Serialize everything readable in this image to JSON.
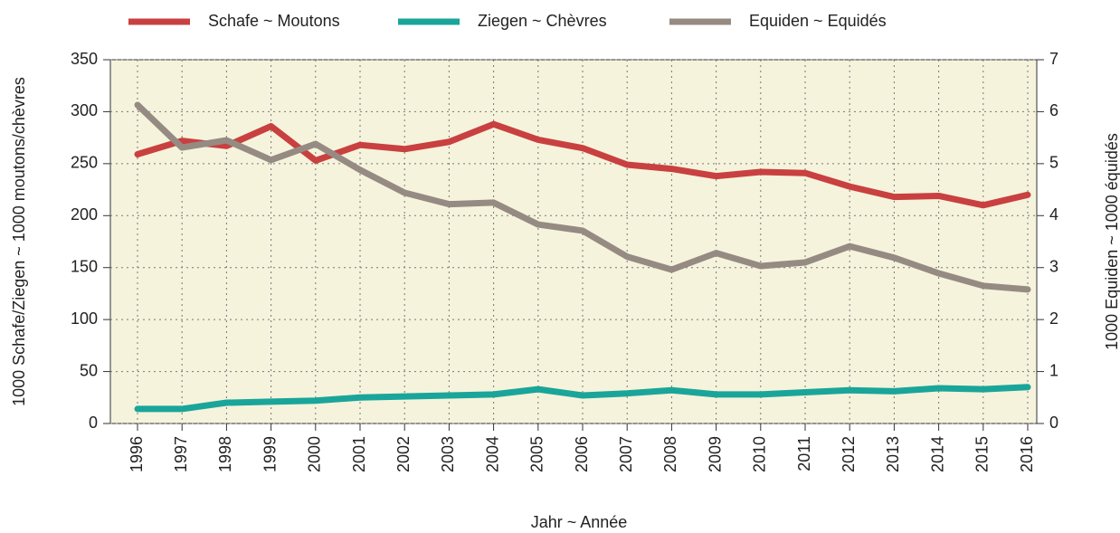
{
  "chart_data": {
    "type": "line",
    "categories": [
      "1996",
      "1997",
      "1998",
      "1999",
      "2000",
      "2001",
      "2002",
      "2003",
      "2004",
      "2005",
      "2006",
      "2007",
      "2008",
      "2009",
      "2010",
      "2011",
      "2012",
      "2013",
      "2014",
      "2015",
      "2016"
    ],
    "series": [
      {
        "name": "Schafe ~ Moutons",
        "color": "#c94040",
        "values": [
          259,
          272,
          267,
          286,
          253,
          268,
          264,
          271,
          288,
          273,
          265,
          249,
          245,
          238,
          242,
          241,
          228,
          218,
          219,
          210,
          220
        ]
      },
      {
        "name": "Ziegen ~ Chèvres",
        "color": "#1aa59a",
        "values": [
          14,
          14,
          20,
          21,
          22,
          25,
          26,
          27,
          28,
          33,
          27,
          29,
          32,
          28,
          28,
          30,
          32,
          31,
          34,
          33,
          35
        ]
      },
      {
        "name": "Equiden ~ Equidés",
        "color": "#958b83",
        "axis": "y2",
        "values": [
          6.13,
          5.31,
          5.45,
          5.07,
          5.38,
          4.88,
          4.44,
          4.22,
          4.25,
          3.83,
          3.71,
          3.21,
          2.96,
          3.28,
          3.03,
          3.1,
          3.41,
          3.19,
          2.89,
          2.65,
          2.58
        ]
      }
    ],
    "ylim": [
      0,
      350
    ],
    "yticks": [
      0,
      50,
      100,
      150,
      200,
      250,
      300,
      350
    ],
    "y2lim": [
      0,
      7
    ],
    "y2ticks": [
      0,
      1,
      2,
      3,
      4,
      5,
      6,
      7
    ],
    "ylabel": "1000 Schafe/Ziegen ~ 1000 moutons/chèvres",
    "y2label": "1000 Equiden ~ 1000 équidés",
    "xlabel": "Jahr ~ Année",
    "grid": true,
    "legend": "top"
  }
}
